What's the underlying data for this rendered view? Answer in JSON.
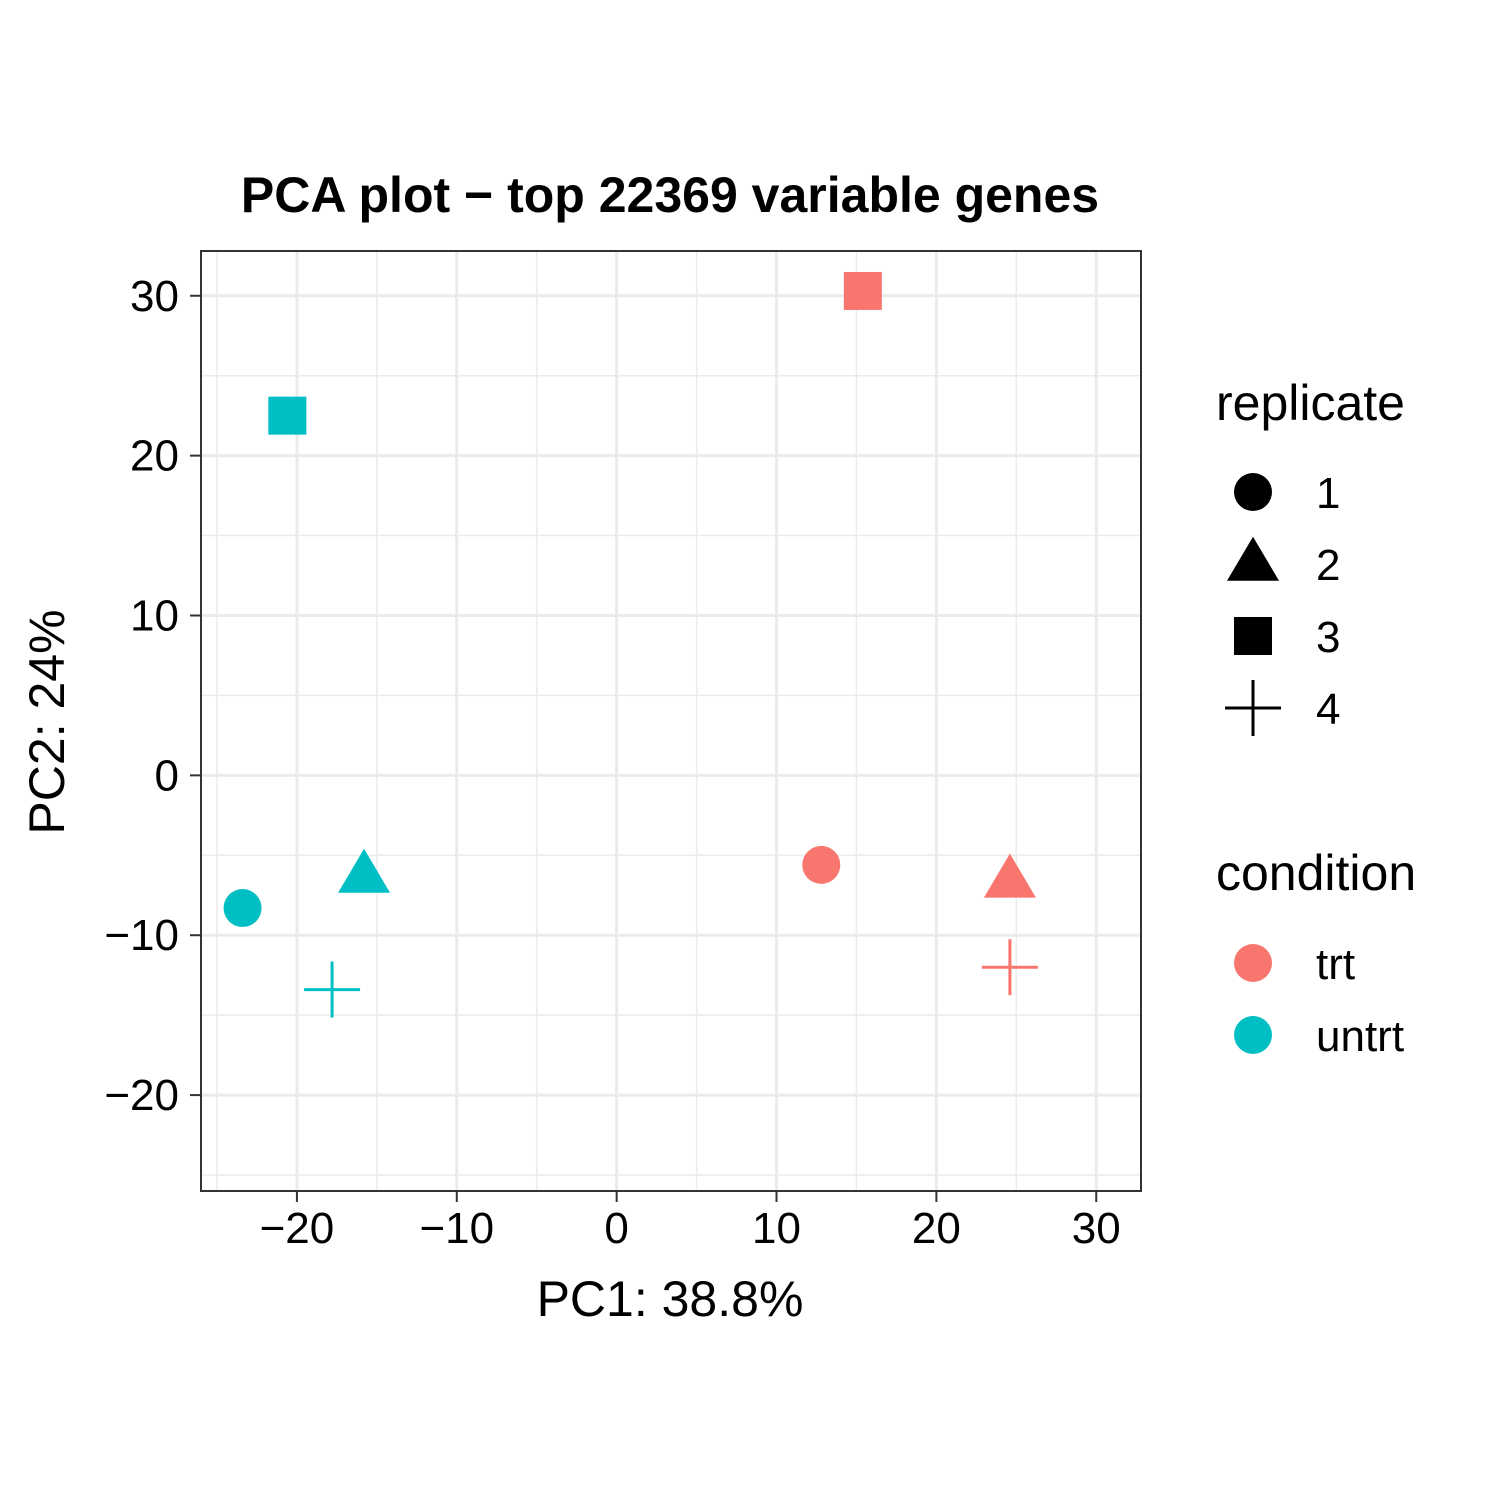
{
  "chart_data": {
    "type": "scatter",
    "title": "PCA plot − top 22369 variable genes",
    "xlabel": "PC1: 38.8%",
    "ylabel": "PC2: 24%",
    "xlim": [
      -26,
      32.8
    ],
    "ylim": [
      -26,
      32.8
    ],
    "xticks": [
      -20,
      -10,
      0,
      10,
      20,
      30
    ],
    "yticks": [
      -20,
      -10,
      0,
      10,
      20,
      30
    ],
    "xtick_labels": [
      "−20",
      "−10",
      "0",
      "10",
      "20",
      "30"
    ],
    "ytick_labels": [
      "−20",
      "−10",
      "0",
      "10",
      "20",
      "30"
    ],
    "grid": true,
    "legend_position": "right",
    "points": [
      {
        "x": 12.8,
        "y": -5.6,
        "condition": "trt",
        "replicate": "1"
      },
      {
        "x": 24.6,
        "y": -6.6,
        "condition": "trt",
        "replicate": "2"
      },
      {
        "x": 15.4,
        "y": 30.3,
        "condition": "trt",
        "replicate": "3"
      },
      {
        "x": 24.6,
        "y": -12.0,
        "condition": "trt",
        "replicate": "4"
      },
      {
        "x": -23.4,
        "y": -8.3,
        "condition": "untrt",
        "replicate": "1"
      },
      {
        "x": -15.8,
        "y": -6.3,
        "condition": "untrt",
        "replicate": "2"
      },
      {
        "x": -20.6,
        "y": 22.5,
        "condition": "untrt",
        "replicate": "3"
      },
      {
        "x": -17.8,
        "y": -13.4,
        "condition": "untrt",
        "replicate": "4"
      }
    ],
    "legends": {
      "replicate": {
        "title": "replicate",
        "items": [
          {
            "label": "1",
            "shape": "circle"
          },
          {
            "label": "2",
            "shape": "triangle"
          },
          {
            "label": "3",
            "shape": "square"
          },
          {
            "label": "4",
            "shape": "plus"
          }
        ]
      },
      "condition": {
        "title": "condition",
        "items": [
          {
            "label": "trt",
            "color": "#F8766D"
          },
          {
            "label": "untrt",
            "color": "#00BFC4"
          }
        ]
      }
    }
  }
}
